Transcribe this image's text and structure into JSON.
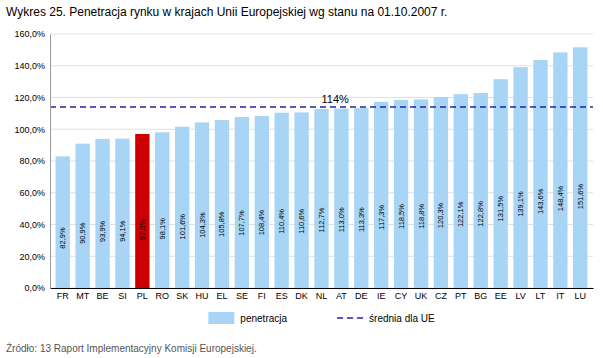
{
  "chart_data": {
    "type": "bar",
    "title": "Wykres 25. Penetracja rynku w krajach Unii Europejskiej wg stanu na 01.10.2007 r.",
    "source": "Źródło: 13 Raport Implementacyjny Komisji Europejskiej.",
    "categories": [
      "FR",
      "MT",
      "BE",
      "SI",
      "PL",
      "RO",
      "SK",
      "HU",
      "EL",
      "SE",
      "FI",
      "ES",
      "DK",
      "NL",
      "AT",
      "DE",
      "IE",
      "CY",
      "UK",
      "CZ",
      "PT",
      "BG",
      "EE",
      "LV",
      "LT",
      "IT",
      "LU"
    ],
    "series": [
      {
        "name": "penetracja",
        "type": "bar",
        "color": "#a8d4f5",
        "colors": [
          "#a8d4f5",
          "#a8d4f5",
          "#a8d4f5",
          "#a8d4f5",
          "#cc0000",
          "#a8d4f5",
          "#a8d4f5",
          "#a8d4f5",
          "#a8d4f5",
          "#a8d4f5",
          "#a8d4f5",
          "#a8d4f5",
          "#a8d4f5",
          "#a8d4f5",
          "#a8d4f5",
          "#a8d4f5",
          "#a8d4f5",
          "#a8d4f5",
          "#a8d4f5",
          "#a8d4f5",
          "#a8d4f5",
          "#a8d4f5",
          "#a8d4f5",
          "#a8d4f5",
          "#a8d4f5",
          "#a8d4f5",
          "#a8d4f5"
        ],
        "values": [
          82.9,
          90.9,
          93.9,
          94.1,
          97.0,
          98.1,
          101.6,
          104.3,
          105.8,
          107.7,
          108.4,
          110.4,
          110.6,
          112.7,
          113.0,
          113.3,
          117.3,
          118.5,
          118.8,
          120.3,
          122.1,
          122.8,
          131.5,
          139.1,
          143.6,
          148.4,
          151.6
        ],
        "value_labels": [
          "82,9%",
          "90,9%",
          "93,9%",
          "94,1%",
          "97,0%",
          "98,1%",
          "101,6%",
          "104,3%",
          "105,8%",
          "107,7%",
          "108,4%",
          "110,4%",
          "110,6%",
          "112,7%",
          "113,0%",
          "113,3%",
          "117,3%",
          "118,5%",
          "118,8%",
          "120,3%",
          "122,1%",
          "122,8%",
          "131,5%",
          "139,1%",
          "143,6%",
          "148,4%",
          "151,6%"
        ]
      }
    ],
    "average": {
      "name": "średnia dla UE",
      "value": 114.0,
      "label": "114%",
      "color": "#2222aa",
      "line_style": "dashed"
    },
    "data_labels": true,
    "ylim": [
      0,
      160
    ],
    "yticks": [
      {
        "value": 0,
        "label": "0,0%"
      },
      {
        "value": 20,
        "label": "20,0%"
      },
      {
        "value": 40,
        "label": "40,0%"
      },
      {
        "value": 60,
        "label": "60,0%"
      },
      {
        "value": 80,
        "label": "80,0%"
      },
      {
        "value": 100,
        "label": "100,0%"
      },
      {
        "value": 120,
        "label": "120,0%"
      },
      {
        "value": 140,
        "label": "140,0%"
      },
      {
        "value": 160,
        "label": "160,0%"
      }
    ],
    "grid": true,
    "legend": "bottom"
  }
}
